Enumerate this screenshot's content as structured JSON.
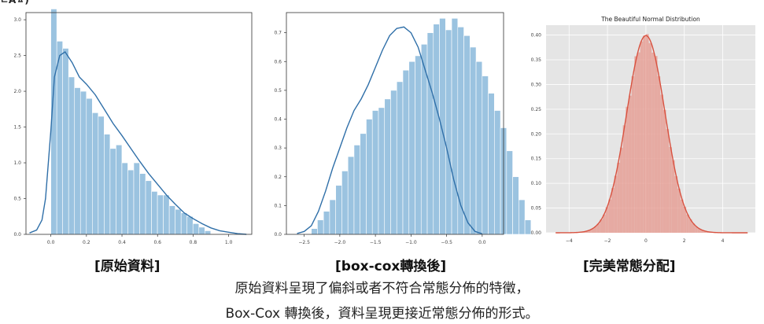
{
  "page": {
    "top_crop_text": "ㄴAㅿ)",
    "caption_line1": "原始資料呈現了偏斜或者不符合常態分佈的特徵，",
    "caption_line2": "Box-Cox 轉換後，資料呈現更接近常態分佈的形式。"
  },
  "colors": {
    "blue_fill": "#9bc3e0",
    "blue_line": "#2f6fa8",
    "red_fill": "#e6a097",
    "red_line": "#d8513f",
    "ggplot_bg": "#e5e5e5"
  },
  "chart_data": [
    {
      "type": "bar",
      "panel_label": "[原始資料]",
      "title": "",
      "xlabel": "",
      "ylabel": "",
      "xlim": [
        -0.14,
        1.13
      ],
      "ylim": [
        0,
        3.1
      ],
      "x_ticks": [
        "0.0",
        "0.2",
        "0.4",
        "0.6",
        "0.8",
        "1.0"
      ],
      "y_ticks": [
        "0.0",
        "0.5",
        "1.0",
        "1.5",
        "2.0",
        "2.5",
        "3.0"
      ],
      "bins": {
        "start": 0.0,
        "width": 0.0333,
        "values": [
          3.15,
          2.7,
          2.6,
          2.2,
          2.05,
          2.0,
          1.9,
          1.7,
          1.65,
          1.4,
          1.2,
          1.25,
          1.0,
          0.9,
          1.0,
          0.85,
          0.75,
          0.6,
          0.55,
          0.55,
          0.4,
          0.35,
          0.3,
          0.25,
          0.15,
          0.1,
          0.05
        ]
      },
      "kde": {
        "x": [
          -0.12,
          -0.08,
          -0.05,
          -0.03,
          0.0,
          0.02,
          0.05,
          0.08,
          0.12,
          0.16,
          0.2,
          0.25,
          0.3,
          0.35,
          0.4,
          0.45,
          0.5,
          0.55,
          0.6,
          0.65,
          0.7,
          0.75,
          0.8,
          0.85,
          0.9,
          0.95,
          1.0,
          1.05,
          1.1
        ],
        "y": [
          0.02,
          0.06,
          0.2,
          0.5,
          1.45,
          2.2,
          2.5,
          2.55,
          2.4,
          2.2,
          2.1,
          1.95,
          1.75,
          1.55,
          1.38,
          1.2,
          1.02,
          0.85,
          0.7,
          0.55,
          0.42,
          0.3,
          0.22,
          0.15,
          0.09,
          0.05,
          0.03,
          0.01,
          0.0
        ]
      }
    },
    {
      "type": "bar",
      "panel_label": "[box-cox轉換後]",
      "title": "",
      "xlabel": "",
      "ylabel": "",
      "xlim": [
        -2.75,
        0.3
      ],
      "ylim": [
        0,
        0.77
      ],
      "x_ticks": [
        "−2.5",
        "−2.0",
        "−1.5",
        "−1.0",
        "−0.5",
        "0.0"
      ],
      "y_ticks": [
        "0.0",
        "0.1",
        "0.2",
        "0.3",
        "0.4",
        "0.5",
        "0.6",
        "0.7"
      ],
      "bins": {
        "start": -2.4,
        "width": 0.0857,
        "values": [
          0.02,
          0.05,
          0.08,
          0.12,
          0.17,
          0.22,
          0.27,
          0.31,
          0.35,
          0.4,
          0.43,
          0.44,
          0.47,
          0.5,
          0.53,
          0.57,
          0.6,
          0.62,
          0.66,
          0.7,
          0.73,
          0.75,
          0.71,
          0.75,
          0.72,
          0.69,
          0.65,
          0.6,
          0.55,
          0.49,
          0.43,
          0.37,
          0.29,
          0.2,
          0.12,
          0.05
        ]
      },
      "kde": {
        "x": [
          -2.6,
          -2.5,
          -2.4,
          -2.3,
          -2.2,
          -2.1,
          -2.0,
          -1.9,
          -1.8,
          -1.7,
          -1.6,
          -1.5,
          -1.4,
          -1.3,
          -1.2,
          -1.1,
          -1.0,
          -0.9,
          -0.8,
          -0.7,
          -0.6,
          -0.5,
          -0.4,
          -0.3,
          -0.2,
          -0.1,
          0.0
        ],
        "y": [
          0.003,
          0.01,
          0.03,
          0.08,
          0.15,
          0.23,
          0.3,
          0.37,
          0.43,
          0.47,
          0.52,
          0.58,
          0.64,
          0.69,
          0.715,
          0.72,
          0.7,
          0.65,
          0.57,
          0.49,
          0.4,
          0.3,
          0.19,
          0.1,
          0.04,
          0.01,
          0.002
        ]
      }
    },
    {
      "type": "bar",
      "panel_label": "[完美常態分配]",
      "title": "The Beautiful Normal Distribution",
      "xlabel": "",
      "ylabel": "",
      "style": "ggplot",
      "xlim": [
        -5.2,
        5.7
      ],
      "ylim": [
        0,
        0.42
      ],
      "x_ticks": [
        "−4",
        "−2",
        "0",
        "2",
        "4"
      ],
      "y_ticks": [
        "0.00",
        "0.05",
        "0.10",
        "0.15",
        "0.20",
        "0.25",
        "0.30",
        "0.35",
        "0.40"
      ],
      "distribution": {
        "mean": 0,
        "std": 1,
        "from": -4.5,
        "to": 4.5,
        "bin_width": 0.15
      },
      "kde_range": [
        -4.7,
        5.3
      ]
    }
  ]
}
